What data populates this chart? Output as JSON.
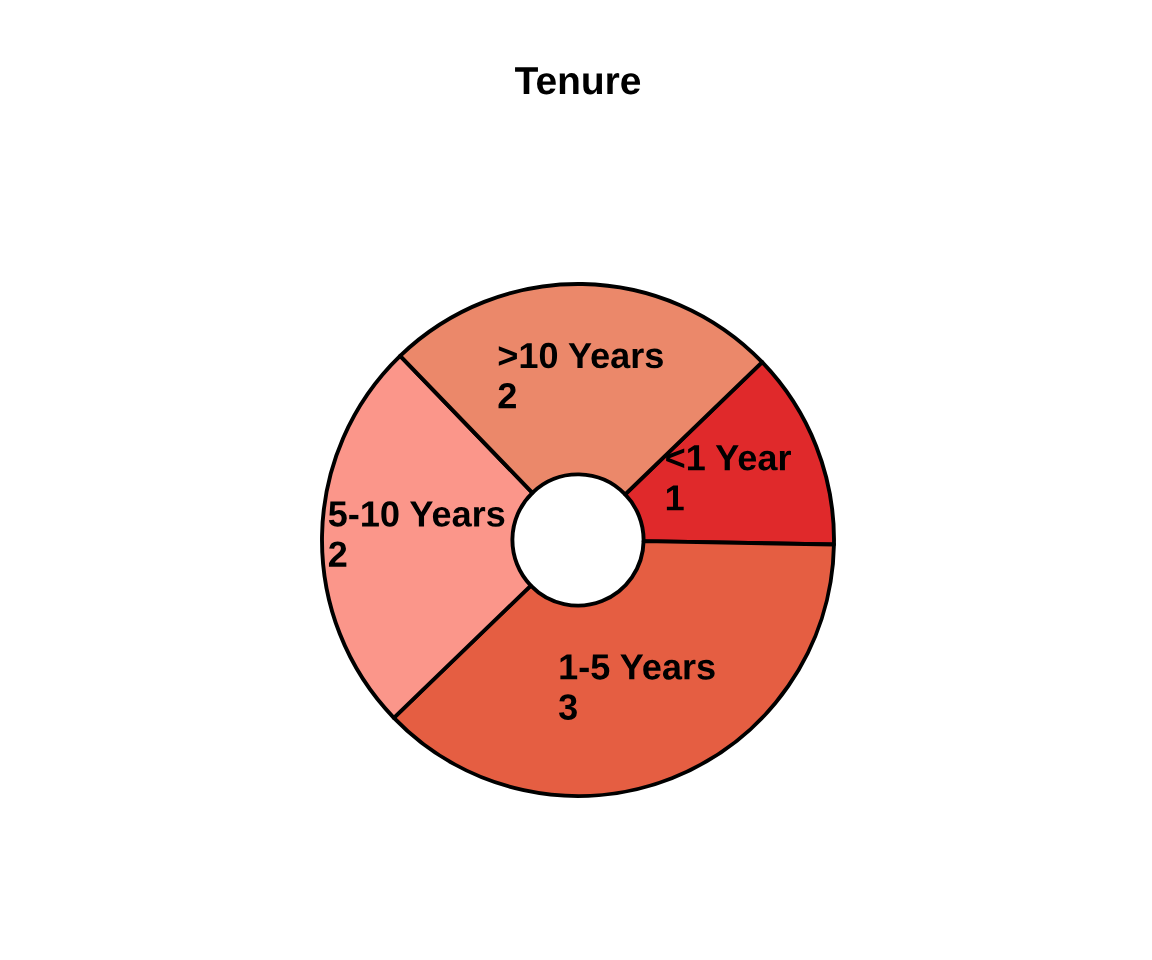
{
  "chart_data": {
    "type": "donut",
    "title": "Tenure",
    "categories": [
      "<1 Year",
      "1-5 Years",
      "5-10 Years",
      ">10 Years"
    ],
    "values": [
      1,
      3,
      2,
      2
    ],
    "colors": [
      "#e0292b",
      "#e55e42",
      "#fb968a",
      "#eb886a"
    ],
    "data_labels": true
  }
}
